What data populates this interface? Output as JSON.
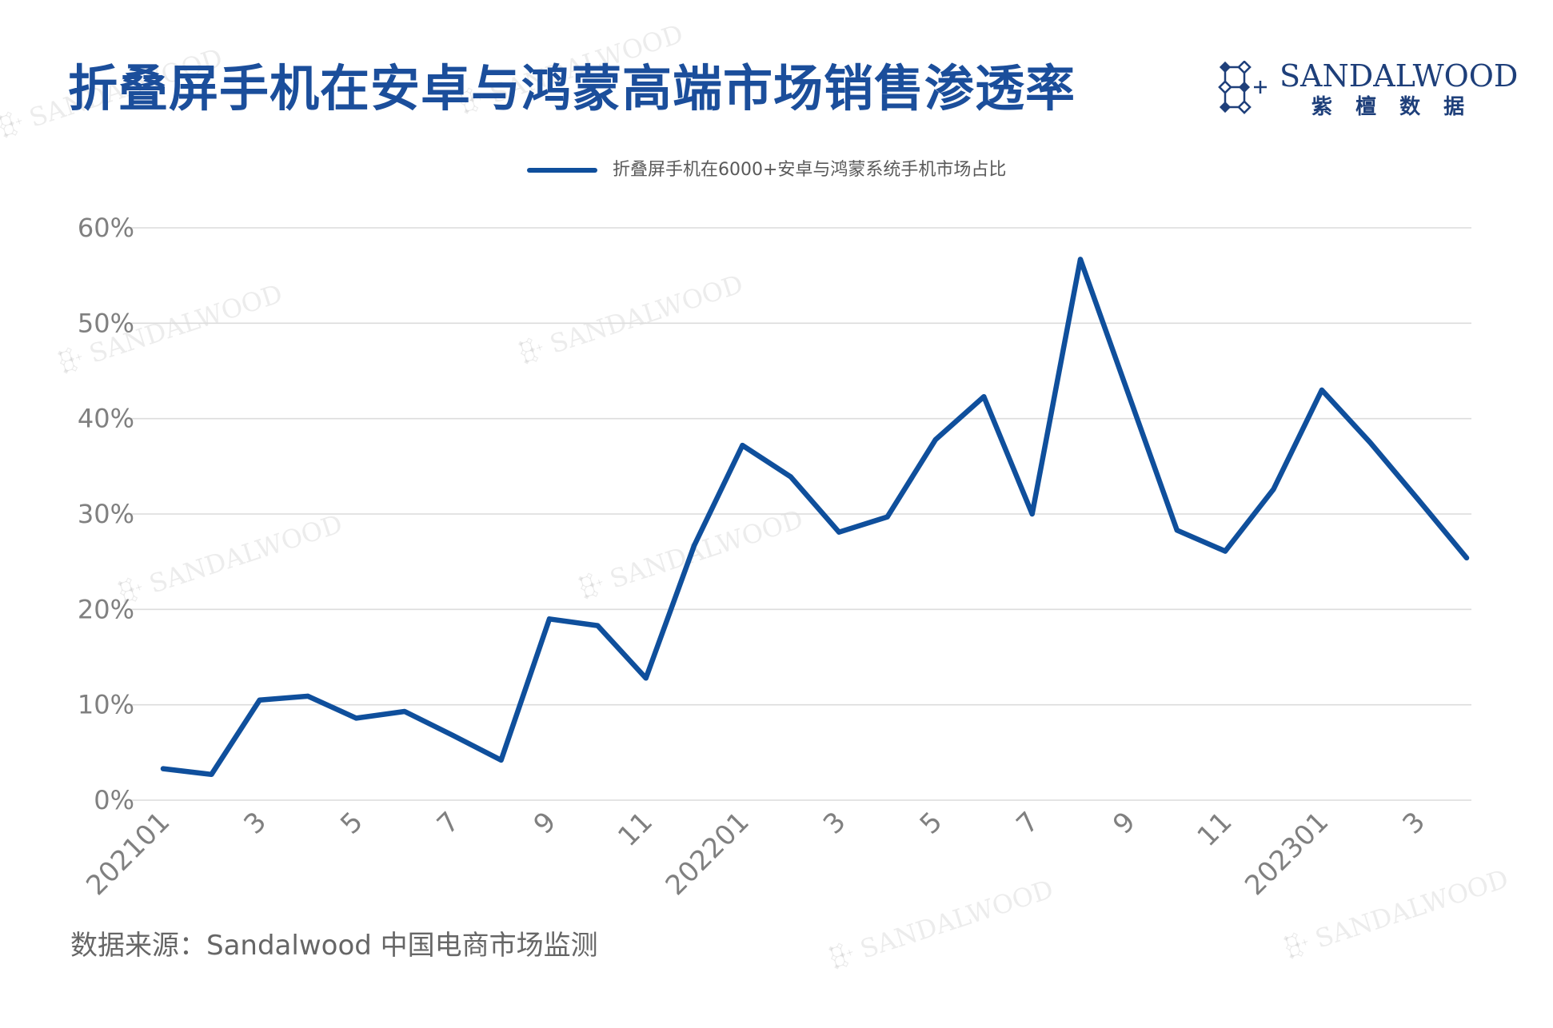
{
  "logo": {
    "name": "SANDALWOOD",
    "cn": "紫 檀 数 据"
  },
  "watermark": {
    "text": "SANDALWOOD"
  },
  "source": "数据来源：Sandalwood 中国电商市场监测",
  "colors": {
    "title": "#1b4e9b",
    "logo": "#1e3f7a",
    "line": "#0f4f9c",
    "grid": "#dcdcdc",
    "axis_text": "#808080"
  },
  "chart_data": {
    "type": "line",
    "title": "折叠屏手机在安卓与鸿蒙高端市场销售渗透率",
    "xlabel": "",
    "ylabel": "",
    "ylim": [
      0,
      60
    ],
    "yticks": [
      0,
      10,
      20,
      30,
      40,
      50,
      60
    ],
    "ytick_labels": [
      "0%",
      "10%",
      "20%",
      "30%",
      "40%",
      "50%",
      "60%"
    ],
    "grid": "horizontal",
    "legend": "top-center",
    "categories": [
      "202101",
      "",
      "3",
      "",
      "5",
      "",
      "7",
      "",
      "9",
      "",
      "11",
      "",
      "202201",
      "",
      "3",
      "",
      "5",
      "",
      "7",
      "",
      "9",
      "",
      "11",
      "",
      "202301",
      "",
      "3",
      ""
    ],
    "series": [
      {
        "name": "折叠屏手机在6000+安卓与鸿蒙系统手机市场占比",
        "values": [
          3.3,
          2.7,
          10.5,
          10.9,
          8.6,
          9.3,
          6.8,
          4.2,
          19.0,
          18.3,
          12.8,
          26.7,
          37.2,
          33.9,
          28.1,
          29.7,
          37.8,
          42.3,
          30.0,
          56.7,
          42.5,
          28.3,
          26.1,
          32.6,
          43.0,
          37.5,
          31.5,
          25.4
        ]
      }
    ]
  }
}
